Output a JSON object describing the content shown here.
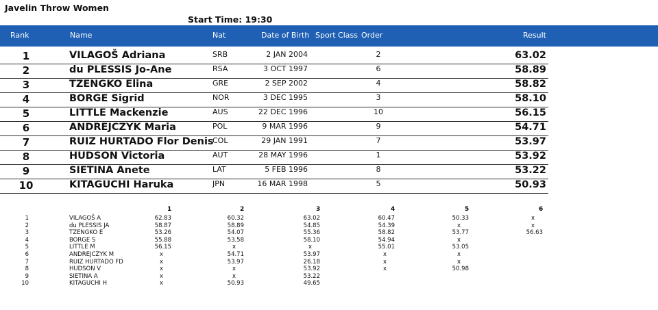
{
  "event": {
    "title": "Javelin Throw Women",
    "start_time_label": "Start Time:",
    "start_time": "19:30"
  },
  "columns": {
    "rank": "Rank",
    "name": "Name",
    "nat": "Nat",
    "dob": "Date of Birth",
    "sport_class": "Sport Class",
    "order": "Order",
    "result": "Result"
  },
  "results": [
    {
      "rank": "1",
      "name": "VILAGOŠ Adriana",
      "nat": "SRB",
      "dob": "2 JAN 2004",
      "order": "2",
      "result": "63.02"
    },
    {
      "rank": "2",
      "name": "du PLESSIS Jo-Ane",
      "nat": "RSA",
      "dob": "3 OCT 1997",
      "order": "6",
      "result": "58.89"
    },
    {
      "rank": "3",
      "name": "TZENGKO Elina",
      "nat": "GRE",
      "dob": "2 SEP 2002",
      "order": "4",
      "result": "58.82"
    },
    {
      "rank": "4",
      "name": "BORGE Sigrid",
      "nat": "NOR",
      "dob": "3 DEC 1995",
      "order": "3",
      "result": "58.10"
    },
    {
      "rank": "5",
      "name": "LITTLE Mackenzie",
      "nat": "AUS",
      "dob": "22 DEC 1996",
      "order": "10",
      "result": "56.15"
    },
    {
      "rank": "6",
      "name": "ANDREJCZYK Maria",
      "nat": "POL",
      "dob": "9 MAR 1996",
      "order": "9",
      "result": "54.71"
    },
    {
      "rank": "7",
      "name": "RUIZ HURTADO Flor Denis",
      "nat": "COL",
      "dob": "29 JAN 1991",
      "order": "7",
      "result": "53.97"
    },
    {
      "rank": "8",
      "name": "HUDSON Victoria",
      "nat": "AUT",
      "dob": "28 MAY 1996",
      "order": "1",
      "result": "53.92"
    },
    {
      "rank": "9",
      "name": "SIETINA Anete",
      "nat": "LAT",
      "dob": "5 FEB 1996",
      "order": "8",
      "result": "53.22"
    },
    {
      "rank": "10",
      "name": "KITAGUCHI Haruka",
      "nat": "JPN",
      "dob": "16 MAR 1998",
      "order": "5",
      "result": "50.93"
    }
  ],
  "attempt_headers": [
    "1",
    "2",
    "3",
    "4",
    "5",
    "6"
  ],
  "attempts": [
    {
      "n": "1",
      "name": "VILAGOŠ A",
      "a": [
        "62.83",
        "60.32",
        "63.02",
        "60.47",
        "50.33",
        "x"
      ]
    },
    {
      "n": "2",
      "name": "du PLESSIS JA",
      "a": [
        "58.87",
        "58.89",
        "54.85",
        "54.39",
        "x",
        "x"
      ]
    },
    {
      "n": "3",
      "name": "TZENGKO E",
      "a": [
        "53.26",
        "54.07",
        "55.36",
        "58.82",
        "53.77",
        "56.63"
      ]
    },
    {
      "n": "4",
      "name": "BORGE S",
      "a": [
        "55.88",
        "53.58",
        "58.10",
        "54.94",
        "x",
        ""
      ]
    },
    {
      "n": "5",
      "name": "LITTLE M",
      "a": [
        "56.15",
        "x",
        "x",
        "55.01",
        "53.05",
        ""
      ]
    },
    {
      "n": "6",
      "name": "ANDREJCZYK M",
      "a": [
        "x",
        "54.71",
        "53.97",
        "x",
        "x",
        ""
      ]
    },
    {
      "n": "7",
      "name": "RUIZ HURTADO FD",
      "a": [
        "x",
        "53.97",
        "26.18",
        "x",
        "x",
        ""
      ]
    },
    {
      "n": "8",
      "name": "HUDSON V",
      "a": [
        "x",
        "x",
        "53.92",
        "x",
        "50.98",
        ""
      ]
    },
    {
      "n": "9",
      "name": "SIETINA A",
      "a": [
        "x",
        "x",
        "53.22",
        "",
        "",
        ""
      ]
    },
    {
      "n": "10",
      "name": "KITAGUCHI H",
      "a": [
        "x",
        "50.93",
        "49.65",
        "",
        "",
        ""
      ]
    }
  ]
}
